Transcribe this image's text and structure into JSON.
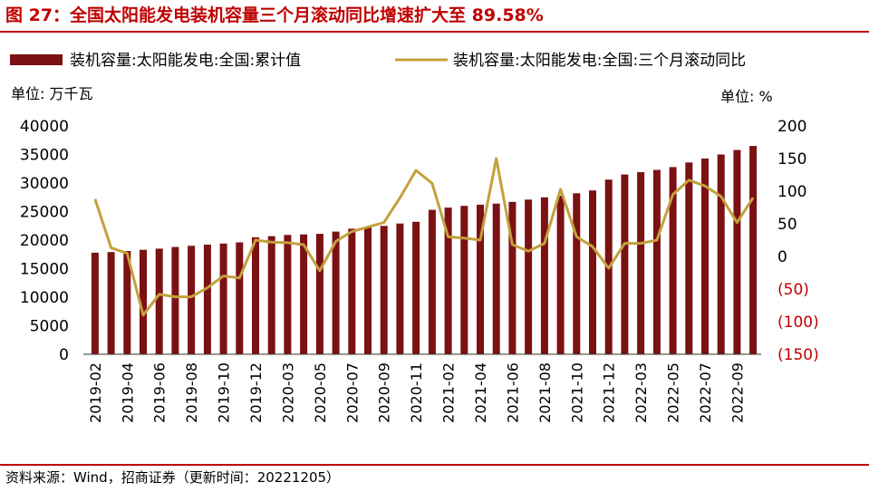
{
  "header": {
    "title": "图 27：全国太阳能发电装机容量三个月滚动同比增速扩大至 89.58%"
  },
  "footer": {
    "source": "资料来源：Wind，招商证券（更新时间：20221205）"
  },
  "colors": {
    "brand": "#C00000",
    "bar": "#7B1113",
    "line": "#C4A03C",
    "negative_tick": "#C00000"
  },
  "chart_data": {
    "type": "bar",
    "legend": {
      "placement": "top",
      "items": [
        "装机容量:太阳能发电:全国:累计值",
        "装机容量:太阳能发电:全国:三个月滚动同比"
      ]
    },
    "unit_left": "单位: 万千瓦",
    "unit_right": "单位:  %",
    "left_axis": {
      "min": 0,
      "max": 40000,
      "ticks": [
        "0",
        "5000",
        "10000",
        "15000",
        "20000",
        "25000",
        "30000",
        "35000",
        "40000"
      ]
    },
    "right_axis": {
      "min": -150,
      "max": 200,
      "ticks": [
        "(150)",
        "(100)",
        "(50)",
        "0",
        "50",
        "100",
        "150",
        "200"
      ]
    },
    "categories": [
      "2019-02",
      "2019-03",
      "2019-04",
      "2019-05",
      "2019-06",
      "2019-07",
      "2019-08",
      "2019-09",
      "2019-10",
      "2019-11",
      "2019-12",
      "2020-02",
      "2020-03",
      "2020-04",
      "2020-05",
      "2020-06",
      "2020-07",
      "2020-08",
      "2020-09",
      "2020-10",
      "2020-11",
      "2020-12",
      "2021-02",
      "2021-03",
      "2021-04",
      "2021-05",
      "2021-06",
      "2021-07",
      "2021-08",
      "2021-09",
      "2021-10",
      "2021-11",
      "2021-12",
      "2022-02",
      "2022-03",
      "2022-04",
      "2022-05",
      "2022-06",
      "2022-07",
      "2022-08",
      "2022-09",
      "2022-10"
    ],
    "tick_labels": [
      "2019-02",
      "2019-04",
      "2019-06",
      "2019-08",
      "2019-10",
      "2019-12",
      "2020-03",
      "2020-05",
      "2020-07",
      "2020-09",
      "2020-11",
      "2021-02",
      "2021-04",
      "2021-06",
      "2021-08",
      "2021-10",
      "2021-12",
      "2022-03",
      "2022-05",
      "2022-07",
      "2022-09"
    ],
    "series": [
      {
        "name": "装机容量:太阳能发电:全国:累计值",
        "type": "bar",
        "axis": "left",
        "values": [
          17800,
          17900,
          18100,
          18300,
          18500,
          18800,
          19000,
          19200,
          19400,
          19600,
          20500,
          20700,
          20900,
          21000,
          21100,
          21500,
          22000,
          22300,
          22500,
          22900,
          23200,
          25300,
          25700,
          26000,
          26200,
          26400,
          26700,
          27100,
          27500,
          27800,
          28200,
          28700,
          30600,
          31500,
          31900,
          32300,
          32800,
          33600,
          34300,
          35000,
          35800,
          36500
        ]
      },
      {
        "name": "装机容量:太阳能发电:全国:三个月滚动同比",
        "type": "line",
        "axis": "right",
        "values": [
          88,
          13,
          5,
          -90,
          -58,
          -62,
          -62,
          -48,
          -30,
          -33,
          25,
          22,
          21,
          18,
          -22,
          23,
          38,
          45,
          52,
          90,
          132,
          112,
          30,
          28,
          25,
          150,
          18,
          8,
          20,
          103,
          30,
          15,
          -18,
          20,
          20,
          25,
          95,
          117,
          108,
          92,
          52,
          90
        ]
      }
    ]
  }
}
